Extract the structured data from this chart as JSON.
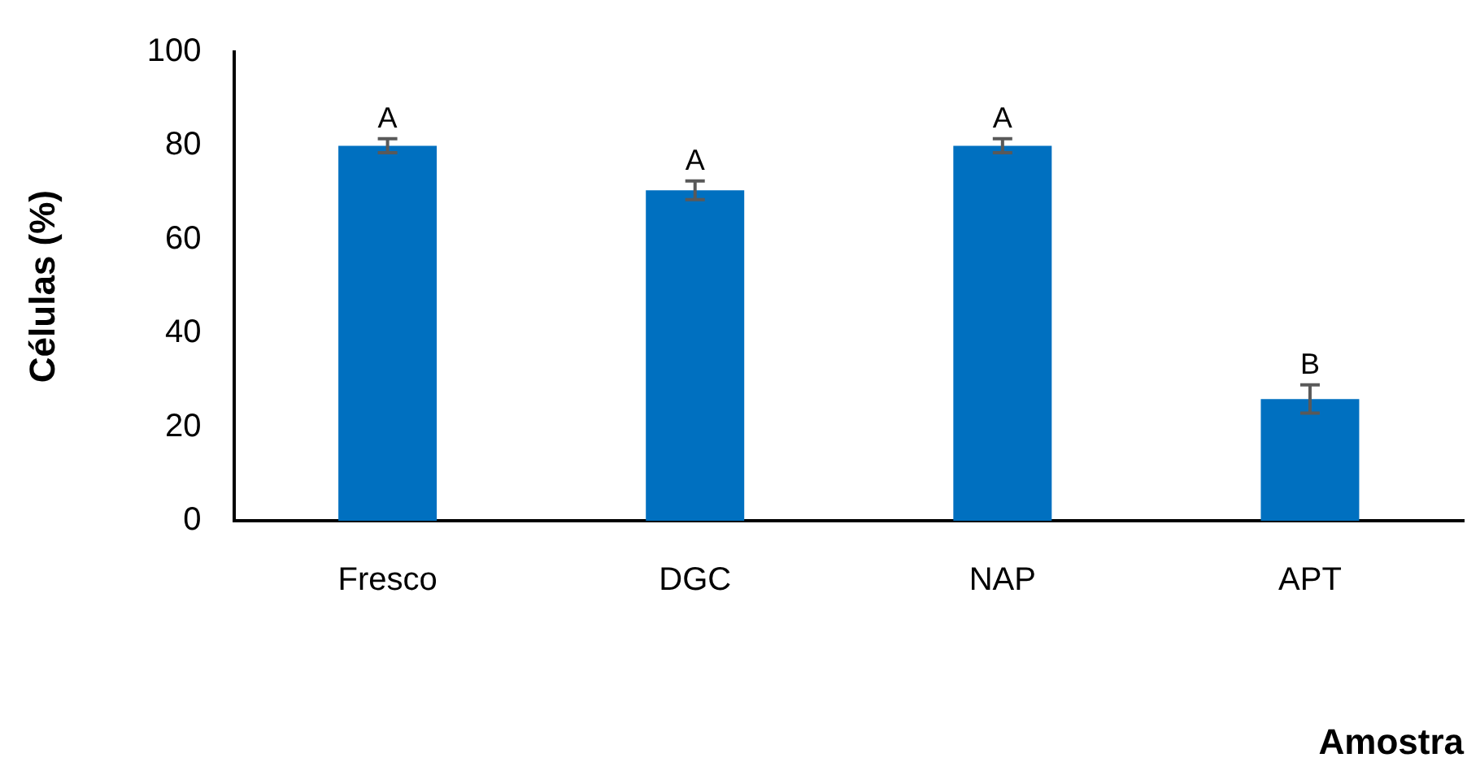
{
  "chart_data": {
    "type": "bar",
    "xlabel": "Amostra",
    "ylabel": "Células (%)",
    "categories": [
      "Fresco",
      "DGC",
      "NAP",
      "APT"
    ],
    "values": [
      80,
      70.5,
      80,
      26
    ],
    "errors": [
      1.5,
      2,
      1.5,
      3
    ],
    "color": "#0070c0",
    "ylim": [
      0,
      100
    ],
    "yticks": [
      0,
      20,
      40,
      60,
      80,
      100
    ],
    "grid": false,
    "legend": false,
    "annotations": [
      {
        "text": "A",
        "x": "Fresco",
        "y": 81.5
      },
      {
        "text": "A",
        "x": "DGC",
        "y": 72.5
      },
      {
        "text": "A",
        "x": "NAP",
        "y": 81.5
      },
      {
        "text": "B",
        "x": "APT",
        "y": 29
      }
    ]
  }
}
